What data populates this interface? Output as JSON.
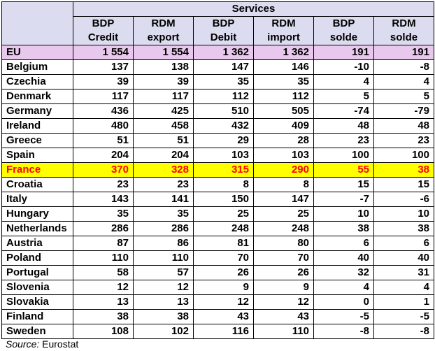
{
  "table": {
    "group_header": "Services",
    "columns": [
      {
        "line1": "BDP",
        "line2": "Credit"
      },
      {
        "line1": "RDM",
        "line2": "export"
      },
      {
        "line1": "BDP",
        "line2": "Debit"
      },
      {
        "line1": "RDM",
        "line2": "import"
      },
      {
        "line1": "BDP",
        "line2": "solde"
      },
      {
        "line1": "RDM",
        "line2": "solde"
      }
    ],
    "rows": [
      {
        "country": "EU",
        "values": [
          "1 554",
          "1 554",
          "1 362",
          "1 362",
          "191",
          "191"
        ],
        "style": "eu"
      },
      {
        "country": "Belgium",
        "values": [
          "137",
          "138",
          "147",
          "146",
          "-10",
          "-8"
        ]
      },
      {
        "country": "Czechia",
        "values": [
          "39",
          "39",
          "35",
          "35",
          "4",
          "4"
        ]
      },
      {
        "country": "Denmark",
        "values": [
          "117",
          "117",
          "112",
          "112",
          "5",
          "5"
        ]
      },
      {
        "country": "Germany",
        "values": [
          "436",
          "425",
          "510",
          "505",
          "-74",
          "-79"
        ]
      },
      {
        "country": "Ireland",
        "values": [
          "480",
          "458",
          "432",
          "409",
          "48",
          "48"
        ]
      },
      {
        "country": "Greece",
        "values": [
          "51",
          "51",
          "29",
          "28",
          "23",
          "23"
        ]
      },
      {
        "country": "Spain",
        "values": [
          "204",
          "204",
          "103",
          "103",
          "100",
          "100"
        ]
      },
      {
        "country": "France",
        "values": [
          "370",
          "328",
          "315",
          "290",
          "55",
          "38"
        ],
        "style": "highlight"
      },
      {
        "country": "Croatia",
        "values": [
          "23",
          "23",
          "8",
          "8",
          "15",
          "15"
        ]
      },
      {
        "country": "Italy",
        "values": [
          "143",
          "141",
          "150",
          "147",
          "-7",
          "-6"
        ]
      },
      {
        "country": "Hungary",
        "values": [
          "35",
          "35",
          "25",
          "25",
          "10",
          "10"
        ]
      },
      {
        "country": "Netherlands",
        "values": [
          "286",
          "286",
          "248",
          "248",
          "38",
          "38"
        ]
      },
      {
        "country": "Austria",
        "values": [
          "87",
          "86",
          "81",
          "80",
          "6",
          "6"
        ]
      },
      {
        "country": "Poland",
        "values": [
          "110",
          "110",
          "70",
          "70",
          "40",
          "40"
        ]
      },
      {
        "country": "Portugal",
        "values": [
          "58",
          "57",
          "26",
          "26",
          "32",
          "31"
        ]
      },
      {
        "country": "Slovenia",
        "values": [
          "12",
          "12",
          "9",
          "9",
          "4",
          "4"
        ]
      },
      {
        "country": "Slovakia",
        "values": [
          "13",
          "13",
          "12",
          "12",
          "0",
          "1"
        ]
      },
      {
        "country": "Finland",
        "values": [
          "38",
          "38",
          "43",
          "43",
          "-5",
          "-5"
        ]
      },
      {
        "country": "Sweden",
        "values": [
          "108",
          "102",
          "116",
          "110",
          "-8",
          "-8"
        ]
      }
    ]
  },
  "source": {
    "label": "Source:",
    "text": "Eurostat"
  },
  "colors": {
    "header_bg": "#dcdcf0",
    "eu_row_bg": "#e8c8ec",
    "highlight_bg": "#ffff00",
    "highlight_text": "#ff0000"
  }
}
